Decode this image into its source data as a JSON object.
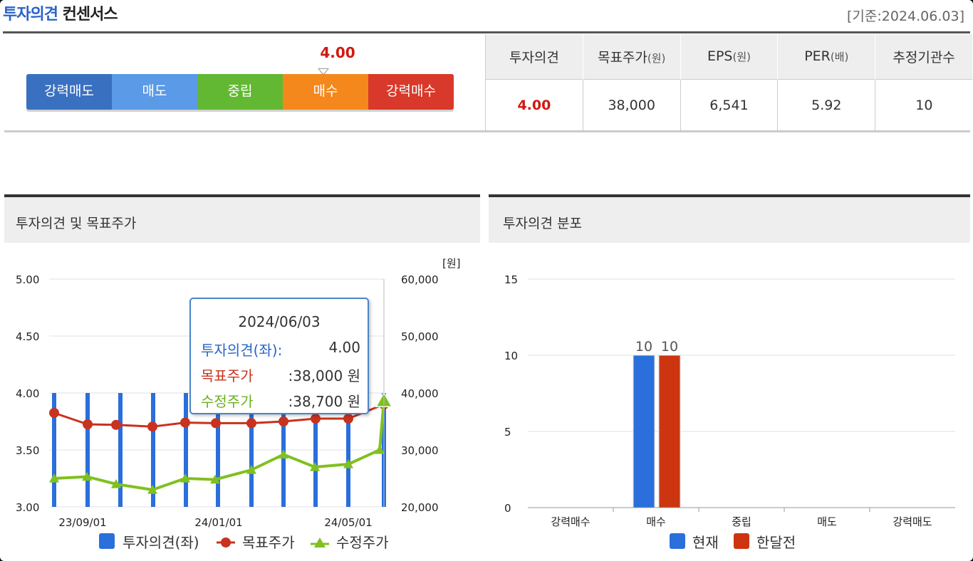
{
  "header": {
    "title_main": "투자의견",
    "title_sub": "컨센서스",
    "date": "[기준:2024.06.03]"
  },
  "opinion_scale": {
    "current_value": "4.00",
    "current_score": 4.0,
    "segments": [
      {
        "label": "강력매도",
        "color": "#3a70c0"
      },
      {
        "label": "매도",
        "color": "#5a9ae6"
      },
      {
        "label": "중립",
        "color": "#62b832"
      },
      {
        "label": "매수",
        "color": "#f4881c"
      },
      {
        "label": "강력매수",
        "color": "#d8392a"
      }
    ]
  },
  "summary": {
    "headers": [
      {
        "main": "투자의견",
        "sub": ""
      },
      {
        "main": "목표주가",
        "sub": "(원)"
      },
      {
        "main": "EPS",
        "sub": "(원)"
      },
      {
        "main": "PER",
        "sub": "(배)"
      },
      {
        "main": "추정기관수",
        "sub": ""
      }
    ],
    "values": [
      "4.00",
      "38,000",
      "6,541",
      "5.92",
      "10"
    ]
  },
  "left_panel": {
    "title": "투자의견 및 목표주가",
    "unit": "[원]",
    "tooltip": {
      "date": "2024/06/03",
      "rows": [
        {
          "label": "투자의견(좌):",
          "value": "4.00",
          "color": "#2864c8"
        },
        {
          "label": "목표주가",
          "value": ":38,000 원",
          "color": "#c8321e"
        },
        {
          "label": "수정주가",
          "value": ":38,700 원",
          "color": "#6cb020"
        }
      ]
    },
    "legend": [
      "투자의견(좌)",
      "목표주가",
      "수정주가"
    ]
  },
  "right_panel": {
    "title": "투자의견 분포",
    "legend": [
      "현재",
      "한달전"
    ]
  },
  "chart_data": [
    {
      "type": "bar+line",
      "title": "투자의견 및 목표주가",
      "x_tick_labels": [
        "23/09/01",
        "24/01/01",
        "24/05/01"
      ],
      "y_left": {
        "ticks": [
          "5.00",
          "4.50",
          "4.00",
          "3.50",
          "3.00"
        ],
        "range": [
          3.0,
          5.0
        ]
      },
      "y_right": {
        "ticks": [
          "60,000",
          "50,000",
          "40,000",
          "30,000",
          "20,000"
        ],
        "range": [
          20000,
          60000
        ],
        "label": "[원]"
      },
      "series": [
        {
          "name": "투자의견(좌)",
          "kind": "bar",
          "axis": "left",
          "color": "#2a6fdb",
          "values": [
            4.0,
            4.0,
            4.0,
            4.0,
            4.0,
            4.0,
            4.0,
            4.0,
            4.0,
            4.0,
            4.0
          ]
        },
        {
          "name": "목표주가",
          "kind": "line",
          "axis": "right",
          "color": "#c8321e",
          "values": [
            36500,
            34500,
            34400,
            34100,
            34800,
            34700,
            34700,
            35000,
            35500,
            35500,
            38000
          ]
        },
        {
          "name": "수정주가",
          "kind": "line",
          "axis": "right",
          "color": "#80c020",
          "values": [
            25000,
            25300,
            24000,
            23000,
            25000,
            24800,
            26500,
            29200,
            27000,
            27500,
            30000,
            38700
          ]
        }
      ]
    },
    {
      "type": "bar",
      "title": "투자의견 분포",
      "categories": [
        "강력매수",
        "매수",
        "중립",
        "매도",
        "강력매도"
      ],
      "ylim": [
        0,
        15
      ],
      "y_ticks": [
        "15",
        "10",
        "5",
        "0"
      ],
      "series": [
        {
          "name": "현재",
          "color": "#2a6fdb",
          "values": [
            0,
            10,
            0,
            0,
            0
          ]
        },
        {
          "name": "한달전",
          "color": "#cc3510",
          "values": [
            0,
            10,
            0,
            0,
            0
          ]
        }
      ]
    }
  ]
}
